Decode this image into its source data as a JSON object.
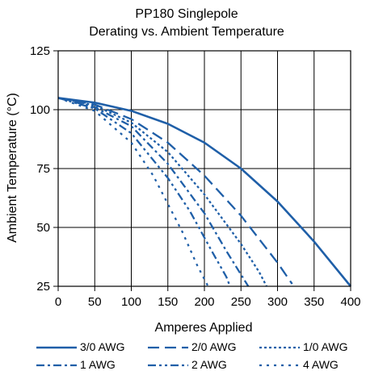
{
  "chart_data": {
    "type": "line",
    "title": "PP180 Singlepole",
    "subtitle": "Derating vs. Ambient Temperature",
    "xlabel": "Amperes Applied",
    "ylabel": "Ambient Temperature (°C)",
    "xlim": [
      0,
      400
    ],
    "ylim": [
      25,
      125
    ],
    "x_ticks": [
      0,
      50,
      100,
      150,
      200,
      250,
      300,
      350,
      400
    ],
    "y_ticks": [
      25,
      50,
      75,
      100,
      125
    ],
    "grid": true,
    "legend_position": "bottom",
    "series": [
      {
        "name": "3/0 AWG",
        "color": "#1f5fa8",
        "dash": "solid",
        "stroke_width": 2.6,
        "points": [
          [
            0,
            105
          ],
          [
            50,
            103
          ],
          [
            100,
            99.5
          ],
          [
            150,
            94
          ],
          [
            200,
            86
          ],
          [
            250,
            75
          ],
          [
            300,
            61
          ],
          [
            350,
            44
          ],
          [
            400,
            25
          ]
        ]
      },
      {
        "name": "2/0 AWG",
        "color": "#1f5fa8",
        "dash": "long-dash",
        "stroke_width": 2.3,
        "points": [
          [
            0,
            105
          ],
          [
            50,
            102.2
          ],
          [
            100,
            96
          ],
          [
            150,
            86
          ],
          [
            200,
            72
          ],
          [
            250,
            55
          ],
          [
            300,
            35
          ],
          [
            320,
            26
          ]
        ]
      },
      {
        "name": "1/0 AWG",
        "color": "#1f5fa8",
        "dash": "dot",
        "stroke_width": 2.3,
        "points": [
          [
            0,
            105
          ],
          [
            50,
            101.8
          ],
          [
            100,
            94.5
          ],
          [
            150,
            82
          ],
          [
            200,
            64
          ],
          [
            250,
            43
          ],
          [
            275,
            31
          ],
          [
            285,
            25
          ]
        ]
      },
      {
        "name": "1 AWG",
        "color": "#1f5fa8",
        "dash": "dash-dot",
        "stroke_width": 2.3,
        "points": [
          [
            0,
            105
          ],
          [
            50,
            101
          ],
          [
            100,
            93
          ],
          [
            150,
            77
          ],
          [
            200,
            56
          ],
          [
            230,
            40
          ],
          [
            250,
            30
          ],
          [
            260,
            25
          ]
        ]
      },
      {
        "name": "2 AWG",
        "color": "#1f5fa8",
        "dash": "dash-dot-dot",
        "stroke_width": 2.3,
        "points": [
          [
            0,
            105
          ],
          [
            50,
            100.5
          ],
          [
            100,
            90
          ],
          [
            150,
            71
          ],
          [
            180,
            57
          ],
          [
            210,
            40
          ],
          [
            230,
            29
          ],
          [
            235,
            25
          ]
        ]
      },
      {
        "name": "4 AWG",
        "color": "#1f5fa8",
        "dash": "dot-dot",
        "stroke_width": 2.3,
        "points": [
          [
            0,
            105
          ],
          [
            50,
            99.5
          ],
          [
            100,
            86
          ],
          [
            130,
            72
          ],
          [
            150,
            60
          ],
          [
            170,
            48
          ],
          [
            190,
            34
          ],
          [
            205,
            25
          ]
        ]
      }
    ]
  }
}
